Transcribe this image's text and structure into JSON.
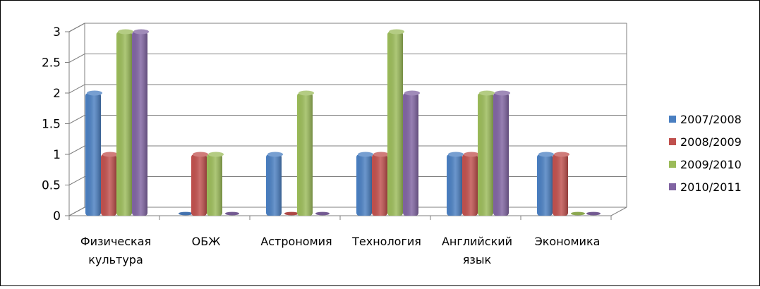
{
  "chart_data": {
    "type": "bar",
    "categories": [
      [
        "Физическая",
        "культура"
      ],
      [
        "ОБЖ"
      ],
      [
        "Астрономия"
      ],
      [
        "Технология"
      ],
      [
        "Английский",
        "язык"
      ],
      [
        "Экономика"
      ]
    ],
    "series": [
      {
        "name": "2007/2008",
        "color": "#4a7fc1",
        "values": [
          2,
          0,
          1,
          1,
          1,
          1
        ]
      },
      {
        "name": "2008/2009",
        "color": "#c0504d",
        "values": [
          1,
          1,
          0,
          1,
          1,
          1
        ]
      },
      {
        "name": "2009/2010",
        "color": "#9bbb59",
        "values": [
          3,
          1,
          2,
          3,
          2,
          0
        ]
      },
      {
        "name": "2010/2011",
        "color": "#8064a2",
        "values": [
          3,
          0,
          0,
          2,
          2,
          0
        ]
      }
    ],
    "yticks": [
      "0",
      "0.5",
      "1",
      "1.5",
      "2",
      "2.5",
      "3"
    ],
    "ylim": [
      0,
      3
    ],
    "grid": true,
    "legend": "right",
    "title": "",
    "xlabel": "",
    "ylabel": ""
  }
}
